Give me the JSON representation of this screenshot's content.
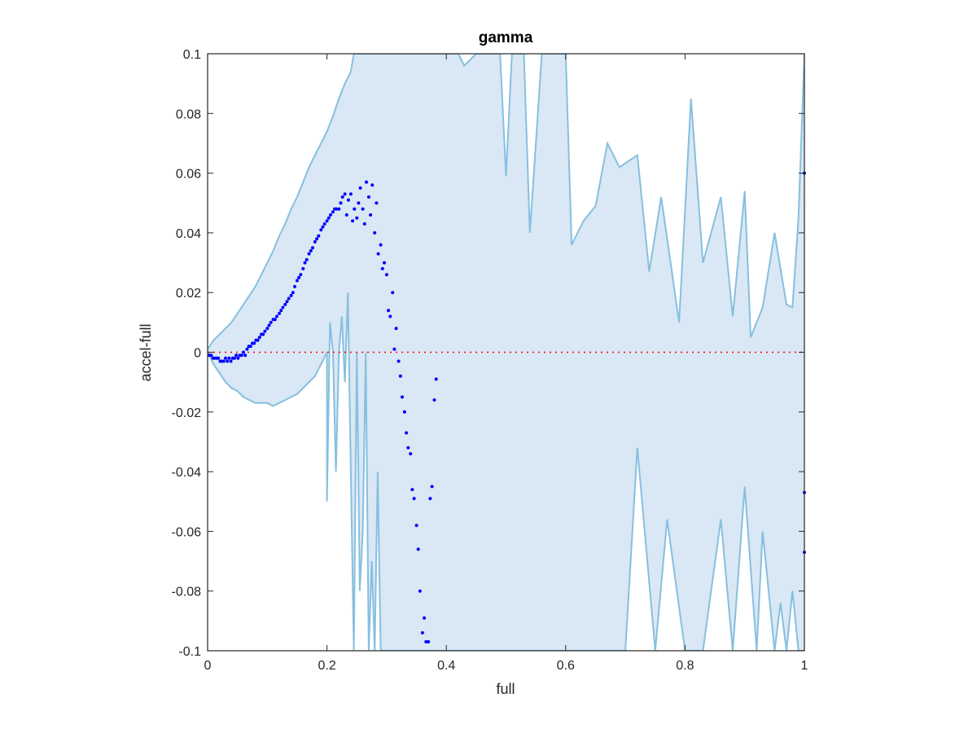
{
  "chart_data": {
    "type": "scatter",
    "title": "gamma",
    "xlabel": "full",
    "ylabel": "accel-full",
    "xlim": [
      0,
      1
    ],
    "ylim": [
      -0.1,
      0.1
    ],
    "x_ticks": [
      0,
      0.2,
      0.4,
      0.6,
      0.8,
      1
    ],
    "x_tick_labels": [
      "0",
      "0.2",
      "0.4",
      "0.6",
      "0.8",
      "1"
    ],
    "y_ticks": [
      -0.1,
      -0.08,
      -0.06,
      -0.04,
      -0.02,
      0,
      0.02,
      0.04,
      0.06,
      0.08,
      0.1
    ],
    "y_tick_labels": [
      "-0.1",
      "-0.08",
      "-0.06",
      "-0.04",
      "-0.02",
      "0",
      "0.02",
      "0.04",
      "0.06",
      "0.08",
      "0.1"
    ],
    "grid": false,
    "legend": "none",
    "reference_line": {
      "y": 0,
      "style": "dotted",
      "color": "#ff0000"
    },
    "band": {
      "fill_color": "#d9e8f4",
      "line_color": "#87bfe0",
      "upper": [
        [
          0,
          0.001
        ],
        [
          0.01,
          0.004
        ],
        [
          0.02,
          0.006
        ],
        [
          0.03,
          0.008
        ],
        [
          0.04,
          0.01
        ],
        [
          0.05,
          0.013
        ],
        [
          0.06,
          0.016
        ],
        [
          0.07,
          0.019
        ],
        [
          0.08,
          0.022
        ],
        [
          0.09,
          0.026
        ],
        [
          0.1,
          0.03
        ],
        [
          0.11,
          0.034
        ],
        [
          0.12,
          0.039
        ],
        [
          0.13,
          0.043
        ],
        [
          0.14,
          0.048
        ],
        [
          0.15,
          0.052
        ],
        [
          0.16,
          0.057
        ],
        [
          0.17,
          0.062
        ],
        [
          0.18,
          0.066
        ],
        [
          0.19,
          0.07
        ],
        [
          0.2,
          0.074
        ],
        [
          0.21,
          0.079
        ],
        [
          0.22,
          0.085
        ],
        [
          0.23,
          0.09
        ],
        [
          0.24,
          0.094
        ],
        [
          0.245,
          0.1
        ],
        [
          0.25,
          0.1
        ],
        [
          0.26,
          0.1
        ],
        [
          0.28,
          0.1
        ],
        [
          0.3,
          0.1
        ],
        [
          0.34,
          0.1
        ],
        [
          0.38,
          0.1
        ],
        [
          0.4,
          0.1
        ],
        [
          0.42,
          0.1
        ],
        [
          0.43,
          0.096
        ],
        [
          0.45,
          0.1
        ],
        [
          0.47,
          0.1
        ],
        [
          0.49,
          0.1
        ],
        [
          0.5,
          0.059
        ],
        [
          0.51,
          0.1
        ],
        [
          0.53,
          0.1
        ],
        [
          0.54,
          0.04
        ],
        [
          0.56,
          0.1
        ],
        [
          0.58,
          0.1
        ],
        [
          0.6,
          0.1
        ],
        [
          0.61,
          0.036
        ],
        [
          0.63,
          0.044
        ],
        [
          0.65,
          0.049
        ],
        [
          0.67,
          0.07
        ],
        [
          0.69,
          0.062
        ],
        [
          0.72,
          0.066
        ],
        [
          0.74,
          0.027
        ],
        [
          0.76,
          0.052
        ],
        [
          0.79,
          0.01
        ],
        [
          0.81,
          0.085
        ],
        [
          0.83,
          0.03
        ],
        [
          0.86,
          0.052
        ],
        [
          0.88,
          0.012
        ],
        [
          0.9,
          0.054
        ],
        [
          0.91,
          0.005
        ],
        [
          0.93,
          0.015
        ],
        [
          0.95,
          0.04
        ],
        [
          0.97,
          0.016
        ],
        [
          0.98,
          0.015
        ],
        [
          0.99,
          0.045
        ],
        [
          1,
          0.1
        ]
      ],
      "lower": [
        [
          0,
          0.0
        ],
        [
          0.01,
          -0.004
        ],
        [
          0.02,
          -0.007
        ],
        [
          0.03,
          -0.01
        ],
        [
          0.04,
          -0.012
        ],
        [
          0.05,
          -0.013
        ],
        [
          0.06,
          -0.015
        ],
        [
          0.07,
          -0.016
        ],
        [
          0.08,
          -0.017
        ],
        [
          0.09,
          -0.017
        ],
        [
          0.1,
          -0.017
        ],
        [
          0.11,
          -0.018
        ],
        [
          0.12,
          -0.017
        ],
        [
          0.13,
          -0.016
        ],
        [
          0.14,
          -0.015
        ],
        [
          0.15,
          -0.014
        ],
        [
          0.16,
          -0.012
        ],
        [
          0.17,
          -0.01
        ],
        [
          0.18,
          -0.008
        ],
        [
          0.19,
          -0.004
        ],
        [
          0.2,
          0.0
        ],
        [
          0.2,
          -0.05
        ],
        [
          0.205,
          0.01
        ],
        [
          0.21,
          0.0
        ],
        [
          0.215,
          -0.04
        ],
        [
          0.22,
          0.0
        ],
        [
          0.225,
          0.012
        ],
        [
          0.23,
          -0.01
        ],
        [
          0.235,
          0.02
        ],
        [
          0.24,
          -0.04
        ],
        [
          0.245,
          -0.1
        ],
        [
          0.25,
          0.0
        ],
        [
          0.255,
          -0.08
        ],
        [
          0.26,
          -0.06
        ],
        [
          0.265,
          0.0
        ],
        [
          0.27,
          -0.1
        ],
        [
          0.275,
          -0.07
        ],
        [
          0.28,
          -0.1
        ],
        [
          0.285,
          -0.04
        ],
        [
          0.29,
          -0.1
        ],
        [
          0.31,
          -0.1
        ],
        [
          0.38,
          -0.1
        ],
        [
          0.45,
          -0.1
        ],
        [
          0.5,
          -0.1
        ],
        [
          0.55,
          -0.1
        ],
        [
          0.6,
          -0.1
        ],
        [
          0.65,
          -0.1
        ],
        [
          0.7,
          -0.1
        ],
        [
          0.72,
          -0.032
        ],
        [
          0.75,
          -0.1
        ],
        [
          0.77,
          -0.056
        ],
        [
          0.8,
          -0.1
        ],
        [
          0.83,
          -0.1
        ],
        [
          0.86,
          -0.056
        ],
        [
          0.88,
          -0.1
        ],
        [
          0.9,
          -0.045
        ],
        [
          0.92,
          -0.1
        ],
        [
          0.93,
          -0.06
        ],
        [
          0.95,
          -0.1
        ],
        [
          0.96,
          -0.084
        ],
        [
          0.97,
          -0.1
        ],
        [
          0.98,
          -0.08
        ],
        [
          0.99,
          -0.1
        ],
        [
          1,
          -0.1
        ]
      ]
    },
    "series": [
      {
        "marker": "dot",
        "color": "#0000ff",
        "x": [
          0.003,
          0.006,
          0.009,
          0.012,
          0.015,
          0.018,
          0.021,
          0.024,
          0.027,
          0.03,
          0.033,
          0.036,
          0.039,
          0.042,
          0.045,
          0.048,
          0.051,
          0.054,
          0.057,
          0.06,
          0.063,
          0.066,
          0.069,
          0.072,
          0.075,
          0.078,
          0.081,
          0.084,
          0.087,
          0.09,
          0.093,
          0.096,
          0.1,
          0.103,
          0.106,
          0.11,
          0.113,
          0.116,
          0.12,
          0.123,
          0.126,
          0.13,
          0.133,
          0.136,
          0.14,
          0.143,
          0.146,
          0.15,
          0.153,
          0.156,
          0.16,
          0.163,
          0.166,
          0.17,
          0.173,
          0.176,
          0.18,
          0.183,
          0.186,
          0.19,
          0.193,
          0.196,
          0.2,
          0.203,
          0.206,
          0.21,
          0.213,
          0.216,
          0.22,
          0.223,
          0.226,
          0.23,
          0.233,
          0.236,
          0.24,
          0.243,
          0.246,
          0.25,
          0.253,
          0.256,
          0.26,
          0.263,
          0.266,
          0.27,
          0.273,
          0.276,
          0.28,
          0.283,
          0.286,
          0.29,
          0.293,
          0.296,
          0.3,
          0.303,
          0.306,
          0.31,
          0.313,
          0.316,
          0.32,
          0.323,
          0.326,
          0.33,
          0.333,
          0.336,
          0.34,
          0.343,
          0.346,
          0.35,
          0.353,
          0.356,
          0.36,
          0.363,
          0.366,
          0.37,
          0.373,
          0.376,
          0.38,
          0.383,
          1.0,
          1.0,
          1.0
        ],
        "y": [
          -0.001,
          -0.001,
          -0.002,
          -0.002,
          -0.002,
          -0.002,
          -0.003,
          -0.003,
          -0.003,
          -0.002,
          -0.003,
          -0.002,
          -0.003,
          -0.002,
          -0.002,
          -0.001,
          -0.002,
          -0.001,
          -0.001,
          0.0,
          -0.001,
          0.001,
          0.002,
          0.002,
          0.003,
          0.003,
          0.004,
          0.004,
          0.005,
          0.006,
          0.006,
          0.007,
          0.008,
          0.009,
          0.01,
          0.011,
          0.011,
          0.012,
          0.013,
          0.014,
          0.015,
          0.016,
          0.017,
          0.018,
          0.019,
          0.02,
          0.022,
          0.024,
          0.025,
          0.026,
          0.028,
          0.03,
          0.031,
          0.033,
          0.034,
          0.035,
          0.037,
          0.038,
          0.039,
          0.041,
          0.042,
          0.043,
          0.044,
          0.045,
          0.046,
          0.047,
          0.048,
          0.048,
          0.048,
          0.05,
          0.052,
          0.053,
          0.046,
          0.051,
          0.053,
          0.044,
          0.048,
          0.045,
          0.05,
          0.055,
          0.048,
          0.043,
          0.057,
          0.052,
          0.046,
          0.056,
          0.04,
          0.05,
          0.033,
          0.036,
          0.028,
          0.03,
          0.026,
          0.014,
          0.012,
          0.02,
          0.001,
          0.008,
          -0.003,
          -0.008,
          -0.015,
          -0.02,
          -0.027,
          -0.032,
          -0.034,
          -0.046,
          -0.049,
          -0.058,
          -0.066,
          -0.08,
          -0.094,
          -0.089,
          -0.097,
          -0.097,
          -0.049,
          -0.045,
          -0.016,
          -0.009,
          0.06,
          -0.047,
          -0.067
        ]
      }
    ]
  }
}
